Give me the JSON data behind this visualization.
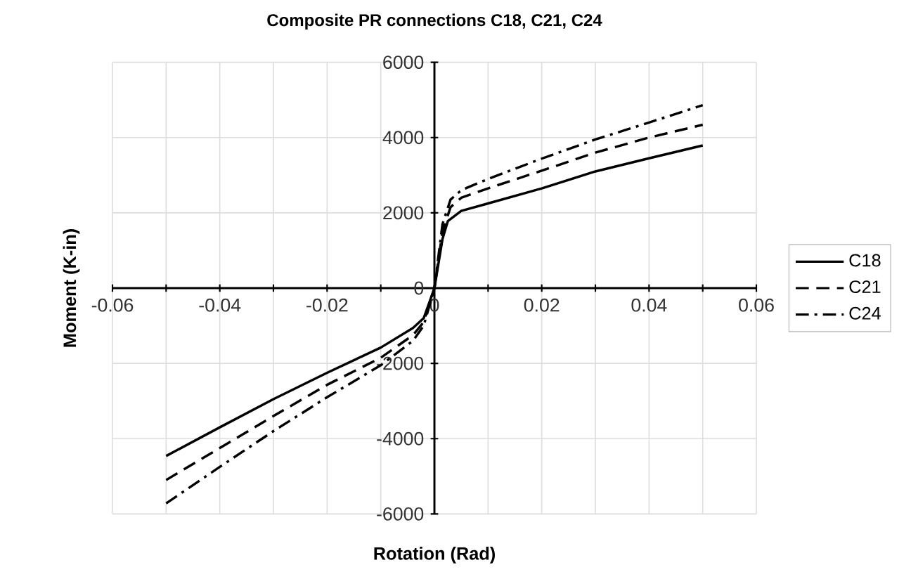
{
  "chart_data": {
    "type": "line",
    "title": "Composite PR connections C18, C21, C24",
    "xlabel": "Rotation (Rad)",
    "ylabel": "Moment (K-in)",
    "xlim": [
      -0.06,
      0.06
    ],
    "ylim": [
      -6000,
      6000
    ],
    "xticks": [
      -0.06,
      {
        "value": -0.05,
        "label": null
      },
      -0.04,
      {
        "value": -0.03,
        "label": null
      },
      -0.02,
      {
        "value": -0.01,
        "label": null
      },
      0,
      {
        "value": 0.01,
        "label": null
      },
      0.02,
      {
        "value": 0.03,
        "label": null
      },
      0.04,
      {
        "value": 0.05,
        "label": null
      },
      0.06
    ],
    "yticks": [
      -6000,
      -4000,
      -2000,
      0,
      2000,
      4000,
      6000
    ],
    "grid": true,
    "legend": "right",
    "marker": "none",
    "series": [
      {
        "name": "C18",
        "color": "#000000",
        "line_style": "solid",
        "x": [
          -0.05,
          -0.04,
          -0.03,
          -0.02,
          -0.01,
          -0.004,
          -0.002,
          0,
          0.0015,
          0.0025,
          0.005,
          0.01,
          0.02,
          0.03,
          0.04,
          0.05
        ],
        "values": [
          -4460,
          -3700,
          -2950,
          -2250,
          -1580,
          -1060,
          -800,
          0,
          1300,
          1780,
          2050,
          2250,
          2650,
          3100,
          3450,
          3790
        ]
      },
      {
        "name": "C21",
        "color": "#000000",
        "line_style": "dashed",
        "x": [
          -0.05,
          -0.04,
          -0.03,
          -0.02,
          -0.01,
          -0.004,
          -0.002,
          0,
          0.0015,
          0.003,
          0.005,
          0.01,
          0.02,
          0.03,
          0.04,
          0.05
        ],
        "values": [
          -5100,
          -4250,
          -3400,
          -2570,
          -1850,
          -1250,
          -900,
          0,
          1500,
          2150,
          2400,
          2650,
          3120,
          3600,
          4000,
          4340
        ]
      },
      {
        "name": "C24",
        "color": "#000000",
        "line_style": "dashdot",
        "x": [
          -0.05,
          -0.04,
          -0.03,
          -0.02,
          -0.01,
          -0.004,
          -0.002,
          0,
          0.0015,
          0.003,
          0.005,
          0.01,
          0.02,
          0.03,
          0.04,
          0.05
        ],
        "values": [
          -5720,
          -4750,
          -3800,
          -2900,
          -2050,
          -1400,
          -1000,
          0,
          1700,
          2350,
          2600,
          2900,
          3440,
          3950,
          4400,
          4860
        ]
      }
    ]
  }
}
